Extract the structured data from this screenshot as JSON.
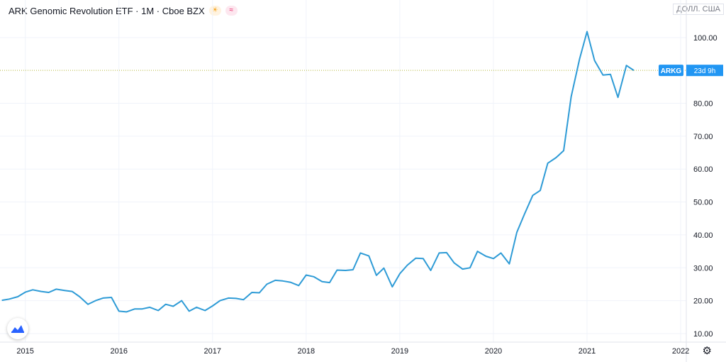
{
  "header": {
    "title": "ARK Genomic Revolution ETF · 1M · Cboe BZX",
    "currency": "ДОЛЛ. США"
  },
  "icons": {
    "market_status": "sun-icon",
    "data_type": "wave-icon",
    "brand": "tradingview-logo-icon",
    "settings": "gear-icon"
  },
  "colors": {
    "line": "#2e9bd6",
    "price_line": "#b5b83a",
    "label_bg": "#2196f3",
    "grid": "#f0f3fa"
  },
  "price_label": {
    "symbol": "ARKG",
    "countdown": "23d 9h"
  },
  "chart_data": {
    "type": "line",
    "title": "ARK Genomic Revolution ETF",
    "x_ticks": [
      "2015",
      "2016",
      "2017",
      "2018",
      "2019",
      "2020",
      "2021",
      "2022"
    ],
    "y_ticks": [
      "10.00",
      "20.00",
      "30.00",
      "40.00",
      "50.00",
      "60.00",
      "70.00",
      "80.00",
      "100.00"
    ],
    "ylim": [
      7.4,
      111.4
    ],
    "xlim": [
      2014.73,
      2022.06
    ],
    "grid": true,
    "series": [
      {
        "x": [
          2014.75,
          2014.83,
          2014.92,
          2015.0,
          2015.08,
          2015.17,
          2015.25,
          2015.33,
          2015.42,
          2015.5,
          2015.58,
          2015.67,
          2015.75,
          2015.83,
          2015.92,
          2016.0,
          2016.08,
          2016.17,
          2016.25,
          2016.33,
          2016.42,
          2016.5,
          2016.58,
          2016.67,
          2016.75,
          2016.83,
          2016.92,
          2017.0,
          2017.08,
          2017.17,
          2017.25,
          2017.33,
          2017.42,
          2017.5,
          2017.58,
          2017.67,
          2017.75,
          2017.83,
          2017.92,
          2018.0,
          2018.08,
          2018.17,
          2018.25,
          2018.33,
          2018.42,
          2018.5,
          2018.58,
          2018.67,
          2018.75,
          2018.83,
          2018.92,
          2019.0,
          2019.08,
          2019.17,
          2019.25,
          2019.33,
          2019.42,
          2019.5,
          2019.58,
          2019.67,
          2019.75,
          2019.83,
          2019.92,
          2020.0,
          2020.08,
          2020.17,
          2020.25,
          2020.33,
          2020.42,
          2020.5,
          2020.58,
          2020.67,
          2020.75,
          2020.83,
          2020.92,
          2021.0,
          2021.08,
          2021.17,
          2021.25,
          2021.33,
          2021.42,
          2021.5
        ],
        "values": [
          20.1,
          20.5,
          21.2,
          22.6,
          23.3,
          22.8,
          22.5,
          23.5,
          23.1,
          22.8,
          21.2,
          18.9,
          20.0,
          20.8,
          21.0,
          16.8,
          16.6,
          17.5,
          17.5,
          18.0,
          17.0,
          18.9,
          18.3,
          20.0,
          16.8,
          18.0,
          17.0,
          18.4,
          20.0,
          20.8,
          20.7,
          20.3,
          22.5,
          22.4,
          25.0,
          26.2,
          26.0,
          25.6,
          24.6,
          27.8,
          27.3,
          25.8,
          25.5,
          29.3,
          29.2,
          29.4,
          34.5,
          33.6,
          27.7,
          29.9,
          24.2,
          28.2,
          30.8,
          32.9,
          32.8,
          29.2,
          34.5,
          34.6,
          31.5,
          29.6,
          30.0,
          35.0,
          33.5,
          32.8,
          34.5,
          31.2,
          40.8,
          46.2,
          52.0,
          53.5,
          61.8,
          63.5,
          65.6,
          82.0,
          93.5,
          101.8,
          93.0,
          88.6,
          88.8,
          81.8,
          91.5,
          90.0
        ]
      }
    ],
    "current_value": 90.0
  }
}
